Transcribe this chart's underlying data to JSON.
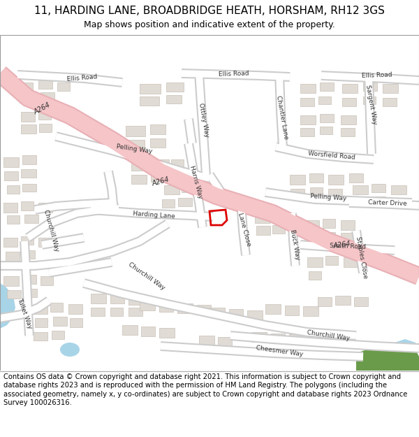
{
  "title_line1": "11, HARDING LANE, BROADBRIDGE HEATH, HORSHAM, RH12 3GS",
  "title_line2": "Map shows position and indicative extent of the property.",
  "footer_text": "Contains OS data © Crown copyright and database right 2021. This information is subject to Crown copyright and database rights 2023 and is reproduced with the permission of HM Land Registry. The polygons (including the associated geometry, namely x, y co-ordinates) are subject to Crown copyright and database rights 2023 Ordnance Survey 100026316.",
  "bg_color": "#f7f5f2",
  "road_main_color": "#f5c5c8",
  "road_main_outline": "#e8b0b5",
  "road_minor_color": "#ffffff",
  "road_minor_outline": "#cccccc",
  "building_color": "#e0dbd4",
  "building_outline": "#c8c0b8",
  "highlight_fc": "none",
  "highlight_ec": "#dd0000",
  "green_color": "#6a9b4a",
  "water_color": "#a8d4e8",
  "river_color": "#a8d4e8",
  "title_fontsize": 11,
  "subtitle_fontsize": 9,
  "footer_fontsize": 7.2,
  "label_fontsize": 6.5,
  "a264_fontsize": 7
}
